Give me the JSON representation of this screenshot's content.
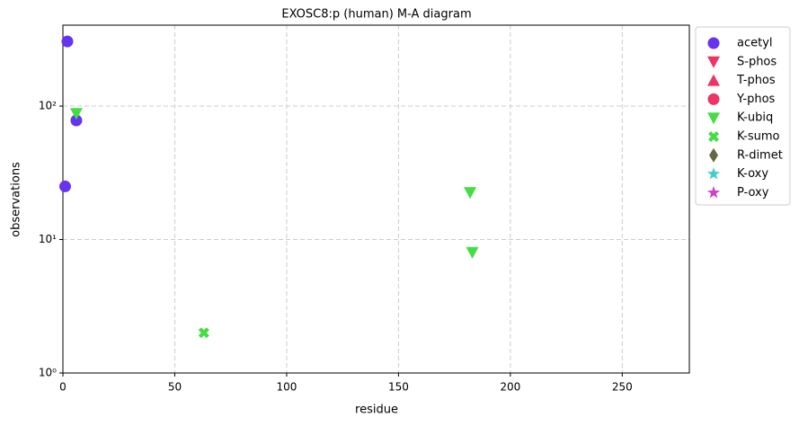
{
  "chart_data": {
    "type": "scatter",
    "title": "EXOSC8:p (human) M-A diagram",
    "x_label": "residue",
    "y_label": "observations",
    "xlim": [
      0,
      280
    ],
    "xticks": [
      0,
      50,
      100,
      150,
      200,
      250
    ],
    "ylim": [
      1,
      404
    ],
    "log_y": true,
    "yticks": [
      {
        "value": 1,
        "label": "10⁰"
      },
      {
        "value": 10,
        "label": "10¹"
      },
      {
        "value": 100,
        "label": "10²"
      }
    ],
    "grid": true,
    "legend": "outside right",
    "series": [
      {
        "name": "acetyl",
        "color": "#6633ee",
        "marker": "circle",
        "x": [
          2,
          6,
          1
        ],
        "values": [
          305,
          78,
          25
        ]
      },
      {
        "name": "S-phos",
        "color": "#ee3366",
        "marker": "down",
        "x": [],
        "values": []
      },
      {
        "name": "T-phos",
        "color": "#ee3366",
        "marker": "up",
        "x": [],
        "values": []
      },
      {
        "name": "Y-phos",
        "color": "#ee3366",
        "marker": "circle",
        "x": [],
        "values": []
      },
      {
        "name": "K-ubiq",
        "color": "#44dd44",
        "marker": "down",
        "x": [
          6,
          182,
          183
        ],
        "values": [
          88,
          22.5,
          8
        ]
      },
      {
        "name": "K-sumo",
        "color": "#44dd44",
        "marker": "x",
        "x": [
          63
        ],
        "values": [
          2
        ]
      },
      {
        "name": "R-dimet",
        "color": "#666644",
        "marker": "diamond",
        "x": [],
        "values": []
      },
      {
        "name": "K-oxy",
        "color": "#44cccc",
        "marker": "star",
        "x": [],
        "values": []
      },
      {
        "name": "P-oxy",
        "color": "#cc44cc",
        "marker": "star",
        "x": [],
        "values": []
      }
    ]
  }
}
